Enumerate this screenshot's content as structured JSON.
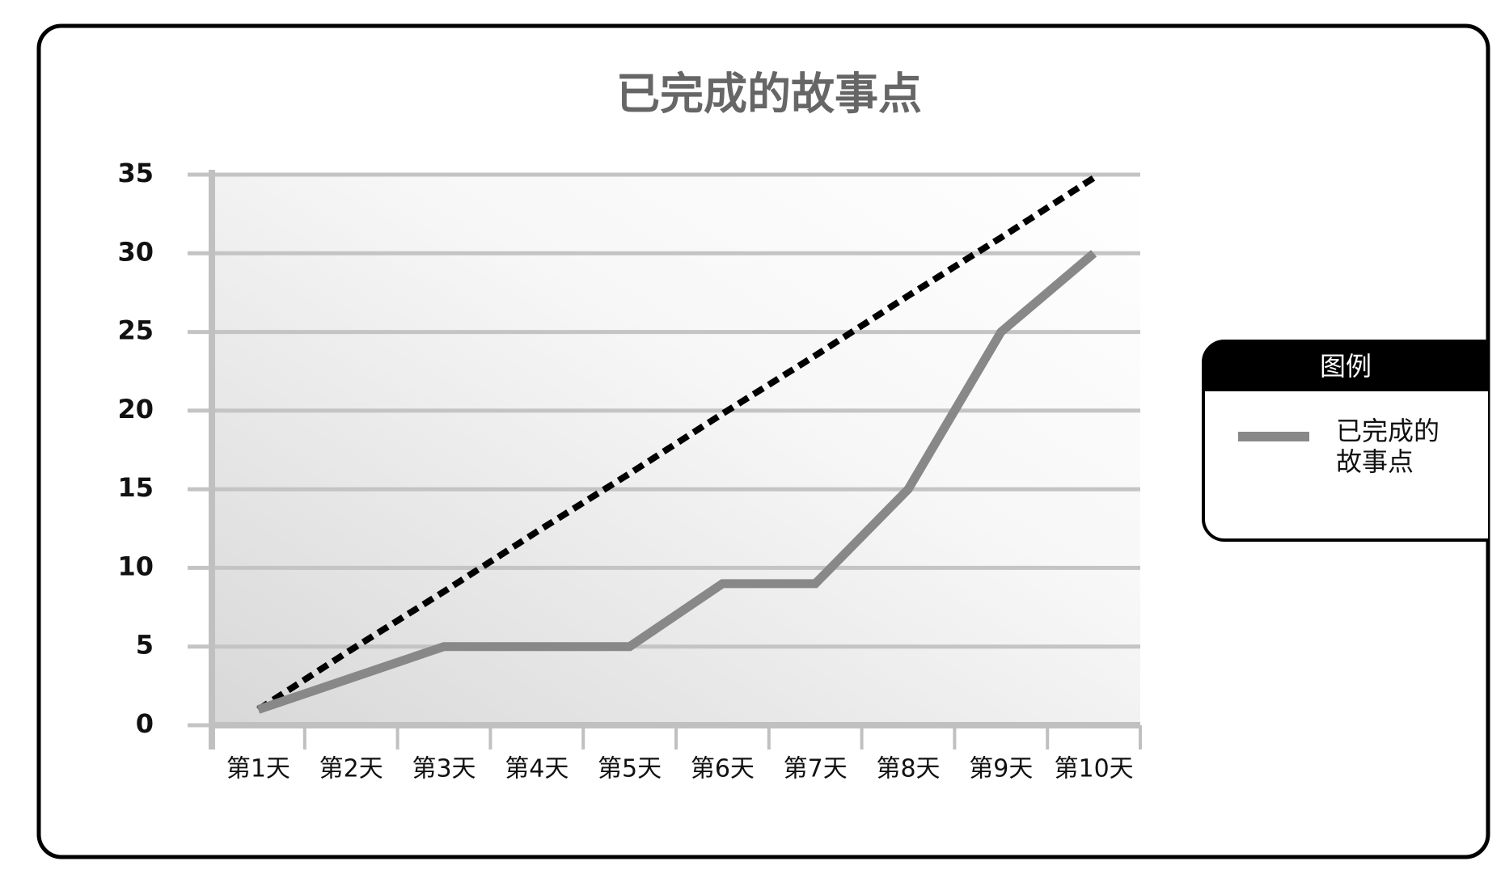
{
  "chart_data": {
    "type": "line",
    "title": "已完成的故事点",
    "categories": [
      "第1天",
      "第2天",
      "第3天",
      "第4天",
      "第5天",
      "第6天",
      "第7天",
      "第8天",
      "第9天",
      "第10天"
    ],
    "series": [
      {
        "name": "已完成的故事点",
        "color": "#888888",
        "values": [
          1,
          3,
          5,
          5,
          5,
          9,
          9,
          15,
          25,
          30
        ]
      },
      {
        "color": "#000000",
        "dashed": true,
        "values": [
          1,
          4.8,
          8.5,
          12.3,
          16,
          19.8,
          23.5,
          27.3,
          31,
          34.8
        ]
      }
    ],
    "ylim": [
      0,
      35
    ],
    "yticks": [
      0,
      5,
      10,
      15,
      20,
      25,
      30,
      35
    ],
    "grid": true,
    "legend": {
      "title": "图例",
      "position": "right"
    }
  }
}
